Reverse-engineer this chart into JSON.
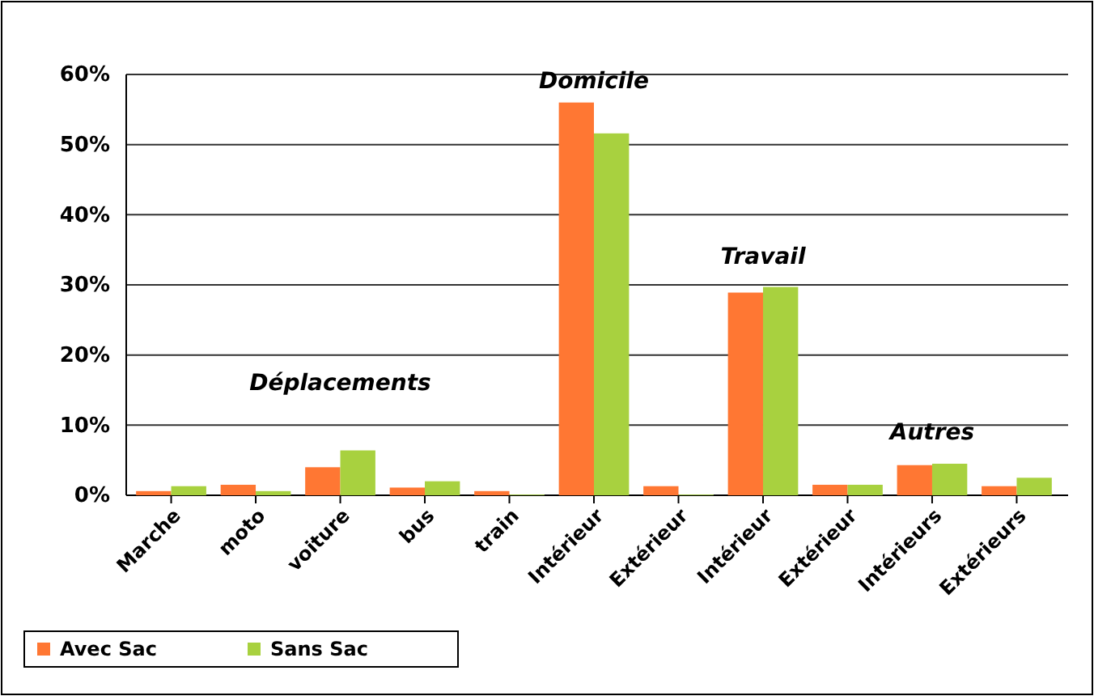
{
  "chart_data": {
    "type": "bar",
    "categories": [
      "Marche",
      "moto",
      "voiture",
      "bus",
      "train",
      "Intérieur",
      "Extérieur",
      "Intérieur",
      "Extérieur",
      "Intérieurs",
      "Extérieurs"
    ],
    "series": [
      {
        "name": "Avec Sac",
        "color": "#ff7733",
        "values": [
          0.6,
          1.5,
          4.0,
          1.1,
          0.6,
          56.0,
          1.3,
          28.9,
          1.5,
          4.3,
          1.3
        ]
      },
      {
        "name": "Sans Sac",
        "color": "#a8d13f",
        "values": [
          1.3,
          0.6,
          6.4,
          2.0,
          0.1,
          51.6,
          0.1,
          29.7,
          1.5,
          4.5,
          2.5
        ]
      }
    ],
    "ylim": [
      0,
      60
    ],
    "yticks": [
      {
        "value": 0,
        "label": "0%"
      },
      {
        "value": 10,
        "label": "10%"
      },
      {
        "value": 20,
        "label": "20%"
      },
      {
        "value": 30,
        "label": "30%"
      },
      {
        "value": 40,
        "label": "40%"
      },
      {
        "value": 50,
        "label": "50%"
      },
      {
        "value": 60,
        "label": "60%"
      }
    ],
    "grid": "y",
    "legend": "bottom left",
    "annotations": [
      "Déplacements",
      "Domicile",
      "Travail",
      "Autres"
    ]
  }
}
